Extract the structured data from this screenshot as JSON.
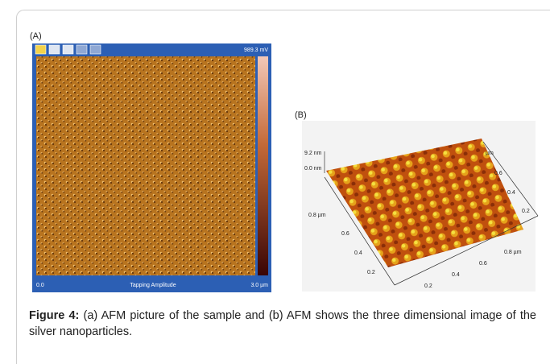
{
  "panel_a": {
    "label": "(A)",
    "scale_max": "989.3 mV",
    "x_start": "0.0",
    "channel": "Tapping Amplitude",
    "x_end": "3.0 µm"
  },
  "panel_b": {
    "label": "(B)",
    "z_labels": [
      "9.2 nm",
      "0.0 nm"
    ],
    "y_axis_labels": [
      "0.8 µm",
      "0.6",
      "0.4",
      "0.2"
    ],
    "x_axis_labels": [
      "0.2",
      "0.4",
      "0.6",
      "0.8 µm"
    ],
    "right_axis_labels": [
      "µm",
      "0.6",
      "0.4",
      "0.2"
    ]
  },
  "caption": {
    "label": "Figure 4:",
    "text": "(a) AFM picture of the sample and (b) AFM shows the three dimensional image of the silver nanoparticles."
  }
}
